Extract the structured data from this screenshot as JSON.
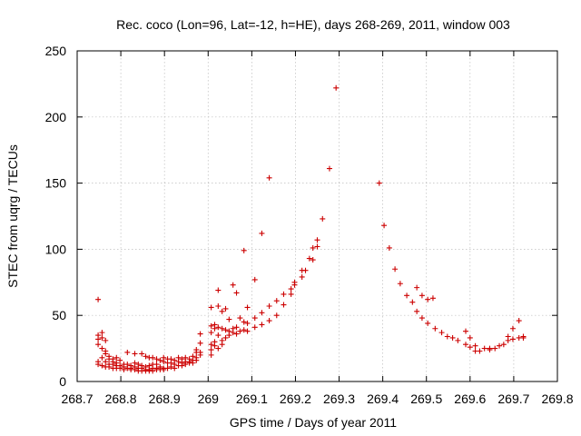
{
  "chart_data": {
    "type": "scatter",
    "title": "Rec. coco (Lon=96, Lat=-12, h=HE), days 268-269, 2011, window 003",
    "xlabel": "GPS time / Days of year 2011",
    "ylabel": "STEC from uqrg / TECUs",
    "xlim": [
      268.7,
      269.8
    ],
    "ylim": [
      0,
      250
    ],
    "xticks": [
      268.7,
      268.8,
      268.9,
      269.0,
      269.1,
      269.2,
      269.3,
      269.4,
      269.5,
      269.6,
      269.7,
      269.8
    ],
    "xtick_labels": [
      "268.7",
      "268.8",
      "268.9",
      "269",
      "269.1",
      "269.2",
      "269.3",
      "269.4",
      "269.5",
      "269.6",
      "269.7",
      "269.8"
    ],
    "yticks": [
      0,
      50,
      100,
      150,
      200,
      250
    ],
    "ytick_labels": [
      "0",
      "50",
      "100",
      "150",
      "200",
      "250"
    ],
    "grid": true,
    "marker": "+",
    "color": "#cc0000",
    "points": [
      [
        268.748,
        62
      ],
      [
        268.748,
        35
      ],
      [
        268.748,
        32
      ],
      [
        268.748,
        28
      ],
      [
        268.748,
        15
      ],
      [
        268.748,
        13
      ],
      [
        268.757,
        37
      ],
      [
        268.757,
        33
      ],
      [
        268.757,
        25
      ],
      [
        268.757,
        18
      ],
      [
        268.757,
        12
      ],
      [
        268.765,
        31
      ],
      [
        268.765,
        23
      ],
      [
        268.765,
        21
      ],
      [
        268.765,
        15
      ],
      [
        268.765,
        11
      ],
      [
        268.773,
        19
      ],
      [
        268.773,
        17
      ],
      [
        268.773,
        13
      ],
      [
        268.773,
        11
      ],
      [
        268.782,
        17
      ],
      [
        268.782,
        15
      ],
      [
        268.782,
        13
      ],
      [
        268.782,
        10
      ],
      [
        268.79,
        18
      ],
      [
        268.79,
        14
      ],
      [
        268.79,
        12
      ],
      [
        268.79,
        10
      ],
      [
        268.798,
        16
      ],
      [
        268.798,
        12
      ],
      [
        268.798,
        10
      ],
      [
        268.807,
        13
      ],
      [
        268.807,
        11
      ],
      [
        268.807,
        9
      ],
      [
        268.815,
        22
      ],
      [
        268.815,
        13
      ],
      [
        268.815,
        10
      ],
      [
        268.823,
        12
      ],
      [
        268.823,
        10
      ],
      [
        268.823,
        9
      ],
      [
        268.832,
        21
      ],
      [
        268.832,
        14
      ],
      [
        268.832,
        11
      ],
      [
        268.832,
        9
      ],
      [
        268.84,
        13
      ],
      [
        268.84,
        10
      ],
      [
        268.84,
        8
      ],
      [
        268.848,
        21
      ],
      [
        268.848,
        12
      ],
      [
        268.848,
        10
      ],
      [
        268.848,
        8
      ],
      [
        268.857,
        19
      ],
      [
        268.857,
        11
      ],
      [
        268.857,
        9
      ],
      [
        268.857,
        8
      ],
      [
        268.865,
        18
      ],
      [
        268.865,
        12
      ],
      [
        268.865,
        9
      ],
      [
        268.865,
        8
      ],
      [
        268.873,
        18
      ],
      [
        268.873,
        13
      ],
      [
        268.873,
        10
      ],
      [
        268.873,
        8
      ],
      [
        268.882,
        17
      ],
      [
        268.882,
        13
      ],
      [
        268.882,
        10
      ],
      [
        268.882,
        9
      ],
      [
        268.89,
        16
      ],
      [
        268.89,
        11
      ],
      [
        268.89,
        9
      ],
      [
        268.898,
        18
      ],
      [
        268.898,
        15
      ],
      [
        268.898,
        10
      ],
      [
        268.898,
        9
      ],
      [
        268.907,
        17
      ],
      [
        268.907,
        14
      ],
      [
        268.907,
        10
      ],
      [
        268.915,
        17
      ],
      [
        268.915,
        14
      ],
      [
        268.915,
        11
      ],
      [
        268.923,
        16
      ],
      [
        268.923,
        13
      ],
      [
        268.923,
        10
      ],
      [
        268.932,
        18
      ],
      [
        268.932,
        15
      ],
      [
        268.932,
        12
      ],
      [
        268.94,
        17
      ],
      [
        268.94,
        14
      ],
      [
        268.94,
        12
      ],
      [
        268.948,
        18
      ],
      [
        268.948,
        15
      ],
      [
        268.948,
        13
      ],
      [
        268.957,
        17
      ],
      [
        268.957,
        15
      ],
      [
        268.957,
        14
      ],
      [
        268.965,
        19
      ],
      [
        268.965,
        16
      ],
      [
        268.965,
        14
      ],
      [
        268.973,
        24
      ],
      [
        268.973,
        22
      ],
      [
        268.973,
        18
      ],
      [
        268.973,
        16
      ],
      [
        268.982,
        36
      ],
      [
        268.982,
        29
      ],
      [
        268.982,
        22
      ],
      [
        268.982,
        20
      ],
      [
        269.007,
        56
      ],
      [
        269.007,
        42
      ],
      [
        269.007,
        37
      ],
      [
        269.007,
        28
      ],
      [
        269.007,
        24
      ],
      [
        269.007,
        20
      ],
      [
        269.015,
        43
      ],
      [
        269.015,
        40
      ],
      [
        269.015,
        30
      ],
      [
        269.015,
        27
      ],
      [
        269.023,
        69
      ],
      [
        269.023,
        57
      ],
      [
        269.023,
        41
      ],
      [
        269.023,
        35
      ],
      [
        269.023,
        25
      ],
      [
        269.032,
        53
      ],
      [
        269.032,
        40
      ],
      [
        269.032,
        31
      ],
      [
        269.032,
        28
      ],
      [
        269.04,
        55
      ],
      [
        269.04,
        39
      ],
      [
        269.04,
        33
      ],
      [
        269.048,
        47
      ],
      [
        269.048,
        38
      ],
      [
        269.048,
        35
      ],
      [
        269.057,
        73
      ],
      [
        269.057,
        40
      ],
      [
        269.057,
        37
      ],
      [
        269.065,
        67
      ],
      [
        269.065,
        41
      ],
      [
        269.065,
        36
      ],
      [
        269.073,
        48
      ],
      [
        269.073,
        38
      ],
      [
        269.082,
        99
      ],
      [
        269.082,
        45
      ],
      [
        269.082,
        39
      ],
      [
        269.09,
        56
      ],
      [
        269.09,
        44
      ],
      [
        269.09,
        38
      ],
      [
        269.107,
        77
      ],
      [
        269.107,
        48
      ],
      [
        269.107,
        41
      ],
      [
        269.123,
        112
      ],
      [
        269.123,
        52
      ],
      [
        269.123,
        43
      ],
      [
        269.14,
        154
      ],
      [
        269.14,
        57
      ],
      [
        269.14,
        46
      ],
      [
        269.157,
        61
      ],
      [
        269.157,
        50
      ],
      [
        269.173,
        66
      ],
      [
        269.173,
        58
      ],
      [
        269.19,
        70
      ],
      [
        269.19,
        66
      ],
      [
        269.198,
        73
      ],
      [
        269.198,
        75
      ],
      [
        269.215,
        84
      ],
      [
        269.215,
        79
      ],
      [
        269.223,
        84
      ],
      [
        269.232,
        93
      ],
      [
        269.24,
        92
      ],
      [
        269.24,
        101
      ],
      [
        269.25,
        102
      ],
      [
        269.25,
        107
      ],
      [
        269.262,
        123
      ],
      [
        269.278,
        161
      ],
      [
        269.293,
        222
      ],
      [
        269.392,
        150
      ],
      [
        269.403,
        118
      ],
      [
        269.415,
        101
      ],
      [
        269.428,
        85
      ],
      [
        269.44,
        74
      ],
      [
        269.455,
        65
      ],
      [
        269.468,
        60
      ],
      [
        269.478,
        71
      ],
      [
        269.478,
        53
      ],
      [
        269.49,
        65
      ],
      [
        269.49,
        48
      ],
      [
        269.503,
        44
      ],
      [
        269.503,
        62
      ],
      [
        269.515,
        63
      ],
      [
        269.52,
        40
      ],
      [
        269.535,
        37
      ],
      [
        269.548,
        34
      ],
      [
        269.56,
        33
      ],
      [
        269.572,
        31
      ],
      [
        269.59,
        38
      ],
      [
        269.59,
        28
      ],
      [
        269.6,
        33
      ],
      [
        269.6,
        26
      ],
      [
        269.612,
        27
      ],
      [
        269.612,
        23
      ],
      [
        269.622,
        23
      ],
      [
        269.633,
        25
      ],
      [
        269.645,
        25
      ],
      [
        269.645,
        24
      ],
      [
        269.657,
        25
      ],
      [
        269.667,
        27
      ],
      [
        269.677,
        28
      ],
      [
        269.687,
        31
      ],
      [
        269.687,
        34
      ],
      [
        269.698,
        40
      ],
      [
        269.698,
        32
      ],
      [
        269.712,
        46
      ],
      [
        269.712,
        33
      ],
      [
        269.722,
        33
      ],
      [
        269.722,
        34
      ]
    ]
  }
}
